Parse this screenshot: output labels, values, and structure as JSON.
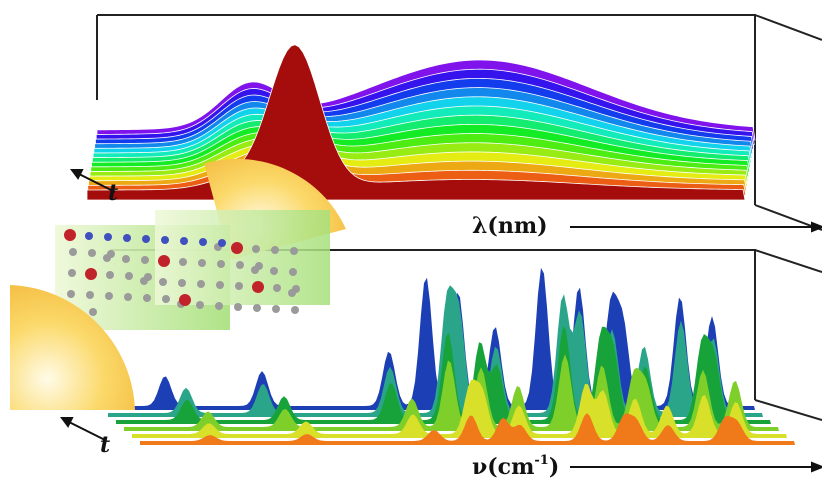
{
  "top_panel": {
    "x_label": "λ(nm)",
    "t_label": "t"
  },
  "bottom_panel": {
    "x_label": "ν(cm",
    "x_label_superscript": "-1",
    "x_label_close": ")",
    "t_label": "t"
  }
}
